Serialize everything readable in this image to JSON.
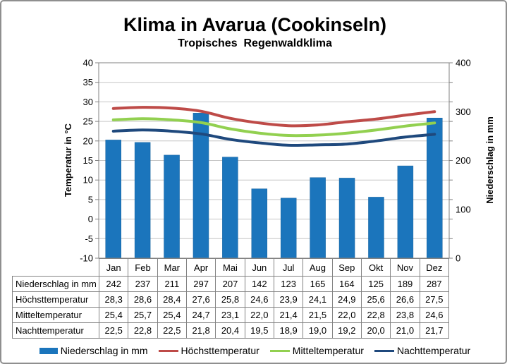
{
  "title": "Klima in Avarua (Cookinseln)",
  "subtitle": "Tropisches  Regenwaldklima",
  "axes": {
    "left_title": "Temperatur in °C",
    "right_title": "Niederschlag in mm",
    "left_ticks": [
      40,
      35,
      30,
      25,
      20,
      15,
      10,
      5,
      0,
      -5,
      -10
    ],
    "right_ticks": [
      400,
      300,
      200,
      100,
      0
    ]
  },
  "colors": {
    "bar": "#1B75BC",
    "line_max": "#BE4B48",
    "line_mean": "#92D050",
    "line_night": "#1F497D",
    "grid": "#C6C6C6",
    "plot_border": "#808080",
    "table_border": "#828282"
  },
  "chart_data": {
    "type": "bar",
    "title": "Klima in Avarua (Cookinseln)",
    "subtitle": "Tropisches Regenwaldklima",
    "categories": [
      "Jan",
      "Feb",
      "Mar",
      "Apr",
      "Mai",
      "Jun",
      "Jul",
      "Aug",
      "Sep",
      "Okt",
      "Nov",
      "Dez"
    ],
    "left_axis": {
      "label": "Temperatur in °C",
      "range": [
        -10,
        40
      ],
      "tick_step": 5
    },
    "right_axis": {
      "label": "Niederschlag in mm",
      "range": [
        0,
        400
      ],
      "tick_step": 100
    },
    "grid": true,
    "legend_position": "bottom",
    "series": [
      {
        "name": "Niederschlag in mm",
        "type": "bar",
        "axis": "right",
        "color": "#1B75BC",
        "values": [
          242,
          237,
          211,
          297,
          207,
          142,
          123,
          165,
          164,
          125,
          189,
          287
        ]
      },
      {
        "name": "Höchsttemperatur",
        "type": "line",
        "axis": "left",
        "color": "#BE4B48",
        "values": [
          28.3,
          28.6,
          28.4,
          27.6,
          25.8,
          24.6,
          23.9,
          24.1,
          24.9,
          25.6,
          26.6,
          27.5
        ]
      },
      {
        "name": "Mitteltemperatur",
        "type": "line",
        "axis": "left",
        "color": "#92D050",
        "values": [
          25.4,
          25.7,
          25.4,
          24.7,
          23.1,
          22.0,
          21.4,
          21.5,
          22.0,
          22.8,
          23.8,
          24.6
        ]
      },
      {
        "name": "Nachttemperatur",
        "type": "line",
        "axis": "left",
        "color": "#1F497D",
        "values": [
          22.5,
          22.8,
          22.5,
          21.8,
          20.4,
          19.5,
          18.9,
          19.0,
          19.2,
          20.0,
          21.0,
          21.7
        ]
      }
    ]
  },
  "table": {
    "rows": [
      {
        "label": "Niederschlag in mm",
        "values": [
          "242",
          "237",
          "211",
          "297",
          "207",
          "142",
          "123",
          "165",
          "164",
          "125",
          "189",
          "287"
        ]
      },
      {
        "label": "Höchsttemperatur",
        "values": [
          "28,3",
          "28,6",
          "28,4",
          "27,6",
          "25,8",
          "24,6",
          "23,9",
          "24,1",
          "24,9",
          "25,6",
          "26,6",
          "27,5"
        ]
      },
      {
        "label": "Mitteltemperatur",
        "values": [
          "25,4",
          "25,7",
          "25,4",
          "24,7",
          "23,1",
          "22,0",
          "21,4",
          "21,5",
          "22,0",
          "22,8",
          "23,8",
          "24,6"
        ]
      },
      {
        "label": "Nachttemperatur",
        "values": [
          "22,5",
          "22,8",
          "22,5",
          "21,8",
          "20,4",
          "19,5",
          "18,9",
          "19,0",
          "19,2",
          "20,0",
          "21,0",
          "21,7"
        ]
      }
    ]
  },
  "legend": {
    "items": [
      {
        "label": "Niederschlag in mm",
        "swatch": "bar",
        "color": "#1B75BC"
      },
      {
        "label": "Höchsttemperatur",
        "swatch": "line",
        "color": "#BE4B48"
      },
      {
        "label": "Mitteltemperatur",
        "swatch": "line",
        "color": "#92D050"
      },
      {
        "label": "Nachttemperatur",
        "swatch": "line",
        "color": "#1F497D"
      }
    ]
  }
}
